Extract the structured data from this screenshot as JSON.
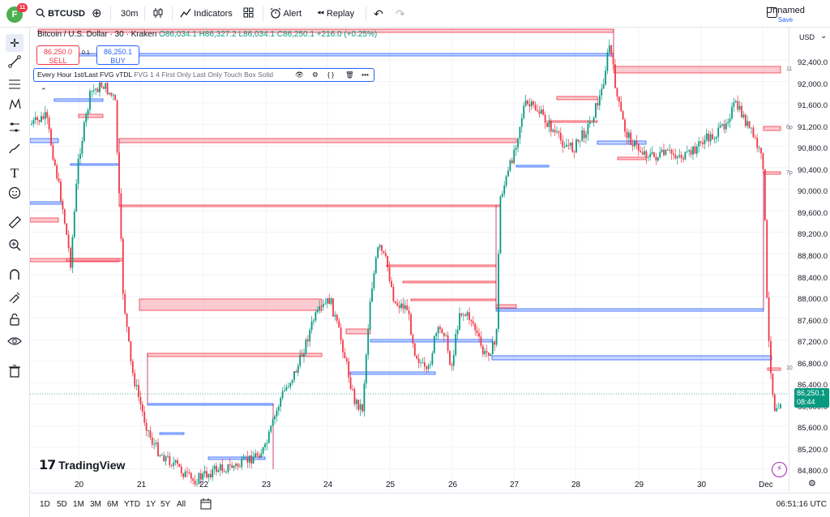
{
  "header": {
    "avatar_letter": "F",
    "notification_count": "11",
    "symbol": "BTCUSD",
    "interval": "30m",
    "indicators_label": "Indicators",
    "alert_label": "Alert",
    "replay_label": "Replay",
    "layout_name": "Unnamed",
    "save_label": "Save"
  },
  "legend": {
    "symbol_title": "Bitcoin / U.S. Dollar · 30 · Kraken",
    "open": "O86,034.1",
    "high": "H86,327.2",
    "low": "L86,034.1",
    "close": "C86,250.1",
    "change": "+216.0 (+0.25%)",
    "sell_price": "86,250.0",
    "sell_label": "SELL",
    "spread": "0.1",
    "buy_price": "86,250.1",
    "buy_label": "BUY"
  },
  "indicator": {
    "title": "Every Hour 1st/Last FVG vTDL",
    "params": "FVG 1 4 First Only Last Only Touch Box Solid"
  },
  "price_axis": {
    "currency": "USD",
    "labels": [
      "92,400.0",
      "92,000.0",
      "91,600.0",
      "91,200.0",
      "90,800.0",
      "90,400.0",
      "90,000.0",
      "89,600.0",
      "89,200.0",
      "88,800.0",
      "88,400.0",
      "88,000.0",
      "87,600.0",
      "87,200.0",
      "86,800.0",
      "86,400.0",
      "86,000.0",
      "85,600.0",
      "85,200.0",
      "84,800.0"
    ],
    "markers": [
      "11",
      "6p",
      "7p",
      "10"
    ],
    "current_price": "86,250.1",
    "countdown": "08:44"
  },
  "time_axis": {
    "labels": [
      "20",
      "21",
      "22",
      "23",
      "24",
      "25",
      "26",
      "27",
      "28",
      "29",
      "30",
      "Dec"
    ]
  },
  "bottom_bar": {
    "timeframes": [
      "1D",
      "5D",
      "1M",
      "3M",
      "6M",
      "YTD",
      "1Y",
      "5Y",
      "All"
    ],
    "clock": "06:51:16 UTC"
  },
  "branding": {
    "logo_text": "TradingView"
  },
  "colors": {
    "up": "#089981",
    "down": "#f23645",
    "bear_box": "#f7a1ac",
    "bull_box": "#9db2ff",
    "accent": "#2962ff"
  },
  "icons": [
    "crosshair-icon",
    "trendline-icon",
    "fib-icon",
    "pattern-icon",
    "forecast-icon",
    "brush-icon",
    "text-icon",
    "emoji-icon",
    "ruler-icon",
    "zoom-icon",
    "magnet-icon",
    "lock-drawing-icon",
    "lock-icon",
    "eye-icon",
    "trash-icon"
  ]
}
